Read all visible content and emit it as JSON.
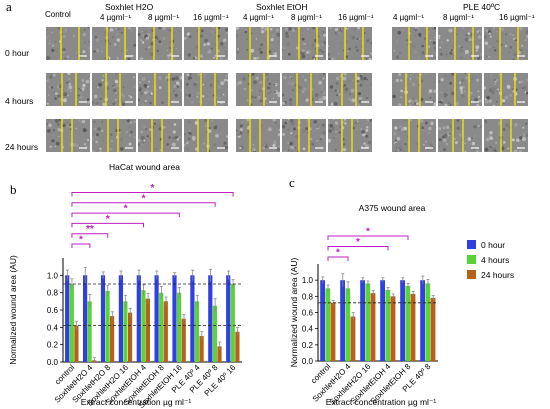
{
  "panels": {
    "a": "a",
    "b": "b",
    "c": "c"
  },
  "micrograph": {
    "columns": [
      "Control",
      "4 µgml⁻¹",
      "8 µgml⁻¹",
      "16 µgml⁻¹",
      "4 µgml⁻¹",
      "8 µgml⁻¹",
      "16 µgml⁻¹",
      "4 µgml⁻¹",
      "8 µgml⁻¹",
      "16 µgml⁻¹"
    ],
    "groups": [
      "Soxhlet H2O",
      "Soxhlet EtOH",
      "PLE 40ºC"
    ],
    "rows": [
      "0 hour",
      "4 hours",
      "24 hours"
    ],
    "colors": {
      "scratch_line": "#f2e600",
      "cells": "#8c8c8c"
    }
  },
  "chart_data": [
    {
      "type": "bar",
      "title": "HaCat wound area",
      "xlabel": "Extract concentration µg ml⁻¹",
      "ylabel": "Normalized wound area (AU)",
      "ylim": [
        0,
        1.2
      ],
      "yticks": [
        "0.0",
        "0.2",
        "0.4",
        "0.6",
        "0.8",
        "1.0"
      ],
      "categories": [
        "control",
        "SoxhletH2O 4",
        "SoxhletH2O 8",
        "SoxhletH2O 16",
        "SoxhletEtOH 4",
        "SoxhletEtOH 8",
        "SoxhletEtOH 16",
        "PLE 40º 4",
        "PLE 40º 8",
        "PLE 40º 16"
      ],
      "series": [
        {
          "name": "0 hour",
          "color": "#2f3fe0",
          "values": [
            1.0,
            1.0,
            1.0,
            1.0,
            1.0,
            1.0,
            1.0,
            1.0,
            1.0,
            1.0
          ],
          "errors": [
            0.06,
            0.09,
            0.04,
            0.05,
            0.06,
            0.05,
            0.03,
            0.06,
            0.07,
            0.05
          ]
        },
        {
          "name": "4 hours",
          "color": "#5ad338",
          "values": [
            0.9,
            0.7,
            0.82,
            0.7,
            0.83,
            0.8,
            0.8,
            0.7,
            0.65,
            0.9
          ],
          "errors": [
            0.06,
            0.08,
            0.06,
            0.07,
            0.06,
            0.07,
            0.06,
            0.07,
            0.08,
            0.05
          ]
        },
        {
          "name": "24 hours",
          "color": "#b85f1c",
          "values": [
            0.42,
            0.02,
            0.53,
            0.57,
            0.73,
            0.7,
            0.5,
            0.3,
            0.18,
            0.35
          ],
          "errors": [
            0.05,
            0.03,
            0.05,
            0.05,
            0.06,
            0.05,
            0.05,
            0.05,
            0.05,
            0.05
          ]
        }
      ],
      "reference_lines": [
        0.9,
        0.42
      ],
      "significance": [
        {
          "from": "control",
          "to": "SoxhletH2O 4",
          "label": "*"
        },
        {
          "from": "control",
          "to": "SoxhletH2O 8",
          "label": "**"
        },
        {
          "from": "control",
          "to": "SoxhletEtOH 4",
          "label": "*"
        },
        {
          "from": "control",
          "to": "SoxhletEtOH 16",
          "label": "*"
        },
        {
          "from": "control",
          "to": "PLE 40º 8",
          "label": "*"
        },
        {
          "from": "control",
          "to": "PLE 40º 16",
          "label": "*"
        }
      ],
      "grid": false,
      "legend": "none"
    },
    {
      "type": "bar",
      "title": "A375 wound area",
      "xlabel": "Extract concentration µg ml⁻¹",
      "ylabel": "Normalized wound area (AU)",
      "ylim": [
        0,
        1.2
      ],
      "yticks": [
        "0.0",
        "0.2",
        "0.4",
        "0.6",
        "0.8",
        "1.0"
      ],
      "categories": [
        "control",
        "SoxhletH2O 4",
        "SoxhletH2O 16",
        "SoxhletEtOH 4",
        "SoxhletEtOH 8",
        "PLE 40º 8"
      ],
      "series": [
        {
          "name": "0 hour",
          "color": "#2f3fe0",
          "values": [
            1.0,
            1.0,
            1.0,
            1.0,
            1.0,
            1.0
          ],
          "errors": [
            0.04,
            0.08,
            0.03,
            0.03,
            0.03,
            0.05
          ]
        },
        {
          "name": "4 hours",
          "color": "#5ad338",
          "values": [
            0.9,
            0.9,
            0.96,
            0.88,
            0.93,
            0.96
          ],
          "errors": [
            0.04,
            0.08,
            0.03,
            0.03,
            0.03,
            0.05
          ]
        },
        {
          "name": "24 hours",
          "color": "#b85f1c",
          "values": [
            0.72,
            0.55,
            0.84,
            0.8,
            0.83,
            0.78
          ],
          "errors": [
            0.03,
            0.05,
            0.03,
            0.03,
            0.03,
            0.03
          ]
        }
      ],
      "reference_lines": [
        0.72
      ],
      "significance": [
        {
          "from": "control",
          "to": "SoxhletH2O 4",
          "label": "*"
        },
        {
          "from": "control",
          "to": "SoxhletEtOH 4",
          "label": "*"
        },
        {
          "from": "control",
          "to": "SoxhletEtOH 8",
          "label": "*"
        }
      ],
      "grid": false,
      "legend": "right"
    }
  ],
  "colors": {
    "significance": "#c020c0",
    "reference": "#222222"
  }
}
